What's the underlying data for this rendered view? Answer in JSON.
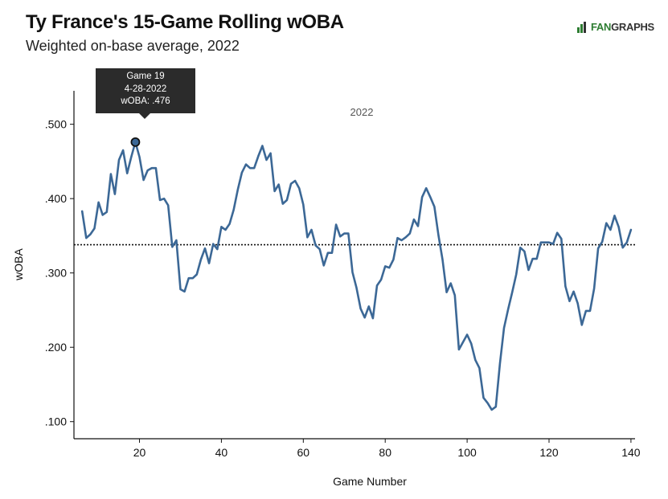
{
  "header": {
    "title": "Ty France's 15-Game Rolling wOBA",
    "subtitle": "Weighted on-base average, 2022"
  },
  "logo": {
    "text_fan": "FAN",
    "text_graphs": "GRAPHS",
    "accent_color": "#2e7d32"
  },
  "tooltip": {
    "line1": "Game 19",
    "line2": "4-28-2022",
    "line3": "wOBA: .476",
    "game": 19,
    "value": 0.476
  },
  "chart_data": {
    "type": "line",
    "title": "Ty France's 15-Game Rolling wOBA",
    "subtitle": "Weighted on-base average, 2022",
    "xlabel": "Game Number",
    "ylabel": "wOBA",
    "xlim": [
      4,
      141
    ],
    "ylim": [
      0.077,
      0.545
    ],
    "x_ticks": [
      20,
      40,
      60,
      80,
      100,
      120,
      140
    ],
    "x_tick_labels": [
      "20",
      "40",
      "60",
      "80",
      "100",
      "120",
      "140"
    ],
    "y_ticks": [
      0.1,
      0.2,
      0.3,
      0.4,
      0.5
    ],
    "y_tick_labels": [
      ".100",
      ".200",
      ".300",
      ".400",
      ".500"
    ],
    "annotation": "2022",
    "reference_line": {
      "y": 0.338,
      "style": "dotted"
    },
    "line_color": "#3c6896",
    "grid": false,
    "series": [
      {
        "x": [
          6,
          7,
          8,
          9,
          10,
          11,
          12,
          13,
          14,
          15,
          16,
          17,
          18,
          19,
          20,
          21,
          22,
          23,
          24,
          25,
          26,
          27,
          28,
          29,
          30,
          31,
          32,
          33,
          34,
          35,
          36,
          37,
          38,
          39,
          40,
          41,
          42,
          43,
          44,
          45,
          46,
          47,
          48,
          49,
          50,
          51,
          52,
          53,
          54,
          55,
          56,
          57,
          58,
          59,
          60,
          61,
          62,
          63,
          64,
          65,
          66,
          67,
          68,
          69,
          70,
          71,
          72,
          73,
          74,
          75,
          76,
          77,
          78,
          79,
          80,
          81,
          82,
          83,
          84,
          85,
          86,
          87,
          88,
          89,
          90,
          91,
          92,
          93,
          94,
          95,
          96,
          97,
          98,
          99,
          100,
          101,
          102,
          103,
          104,
          105,
          106,
          107,
          108,
          109,
          110,
          111,
          112,
          113,
          114,
          115,
          116,
          117,
          118,
          119,
          120,
          121,
          122,
          123,
          124,
          125,
          126,
          127,
          128,
          129,
          130,
          131,
          132,
          133,
          134,
          135,
          136,
          137,
          138,
          139,
          140
        ],
        "y": [
          0.383,
          0.347,
          0.352,
          0.36,
          0.395,
          0.378,
          0.382,
          0.433,
          0.406,
          0.452,
          0.465,
          0.434,
          0.456,
          0.476,
          0.456,
          0.425,
          0.438,
          0.441,
          0.441,
          0.398,
          0.4,
          0.391,
          0.335,
          0.344,
          0.278,
          0.275,
          0.293,
          0.293,
          0.298,
          0.318,
          0.333,
          0.313,
          0.339,
          0.332,
          0.362,
          0.358,
          0.366,
          0.385,
          0.412,
          0.435,
          0.446,
          0.441,
          0.441,
          0.457,
          0.471,
          0.452,
          0.461,
          0.41,
          0.419,
          0.393,
          0.398,
          0.42,
          0.424,
          0.414,
          0.392,
          0.348,
          0.358,
          0.337,
          0.332,
          0.31,
          0.327,
          0.327,
          0.365,
          0.349,
          0.353,
          0.353,
          0.301,
          0.28,
          0.252,
          0.24,
          0.255,
          0.239,
          0.283,
          0.291,
          0.309,
          0.307,
          0.318,
          0.347,
          0.344,
          0.348,
          0.353,
          0.372,
          0.363,
          0.402,
          0.414,
          0.402,
          0.389,
          0.351,
          0.318,
          0.274,
          0.286,
          0.27,
          0.197,
          0.207,
          0.217,
          0.205,
          0.183,
          0.172,
          0.132,
          0.125,
          0.116,
          0.12,
          0.178,
          0.226,
          0.251,
          0.274,
          0.298,
          0.334,
          0.329,
          0.304,
          0.319,
          0.319,
          0.341,
          0.341,
          0.341,
          0.339,
          0.354,
          0.346,
          0.282,
          0.262,
          0.275,
          0.259,
          0.23,
          0.249,
          0.249,
          0.279,
          0.333,
          0.342,
          0.367,
          0.358,
          0.377,
          0.362,
          0.334,
          0.341,
          0.358
        ]
      }
    ]
  }
}
